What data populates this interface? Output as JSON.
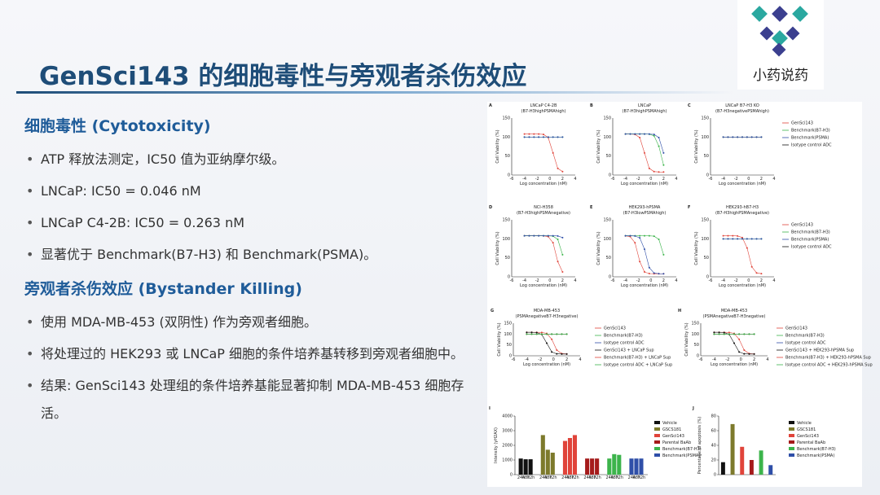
{
  "header": {
    "title": "GenSci143 的细胞毒性与旁观者杀伤效应",
    "logo_text": "小药说药"
  },
  "sections": [
    {
      "heading": "细胞毒性 (Cytotoxicity)",
      "bullets": [
        "ATP 释放法测定，IC50 值为亚纳摩尔级。",
        "LNCaP: IC50 = 0.046 nM",
        "LNCaP C4-2B: IC50 = 0.263 nM",
        "显著优于 Benchmark(B7-H3) 和 Benchmark(PSMA)。"
      ]
    },
    {
      "heading": "旁观者杀伤效应 (Bystander Killing)",
      "bullets": [
        "使用 MDA-MB-453 (双阴性) 作为旁观者细胞。",
        "将处理过的 HEK293 或 LNCaP 细胞的条件培养基转移到旁观者细胞中。",
        "结果: GenSci143 处理组的条件培养基能显著抑制 MDA-MB-453 细胞存活。"
      ]
    }
  ],
  "figure": {
    "y_label": "Cell Viability (%)",
    "x_label": "Log concentration (nM)",
    "yticks": [
      "0",
      "50",
      "100",
      "150"
    ],
    "xticks": [
      "-6",
      "-4",
      "-2",
      "0",
      "2",
      "4"
    ],
    "panels": [
      {
        "label": "A",
        "title": "LNCaP C4-2B",
        "subtitle": "(B7-H3highPSMAhigh)"
      },
      {
        "label": "B",
        "title": "LNCaP",
        "subtitle": "(B7-H3highPSMAhigh)"
      },
      {
        "label": "C",
        "title": "LNCaP B7-H3 KO",
        "subtitle": "(B7-H3negativePSMAhigh)"
      },
      {
        "label": "D",
        "title": "NCI-H358",
        "subtitle": "(B7-H3highPSMAnegative)"
      },
      {
        "label": "E",
        "title": "HEK293-hPSMA",
        "subtitle": "(B7-H3lowPSMAhigh)"
      },
      {
        "label": "F",
        "title": "HEK293-hB7-H3",
        "subtitle": "(B7-H3highPSMAnegative)"
      },
      {
        "label": "G",
        "title": "MDA-MB-453",
        "subtitle": "(PSMAnegativeB7-H3negative)"
      },
      {
        "label": "H",
        "title": "MDA-MB-453",
        "subtitle": "(PSMAnegativeB7-H3negative)"
      }
    ],
    "legend_abc": [
      "GenSci143",
      "Benchmark(B7-H3)",
      "Benchmark(PSMA)",
      "Isotype control ADC"
    ],
    "legend_g": [
      "GenSci143",
      "Benchmark(B7-H3)",
      "Isotype control ADC",
      "GenSci143 + LNCaP Sup",
      "Benchmark(B7-H3) + LNCaP Sup",
      "Isotype control ADC + LNCaP Sup"
    ],
    "legend_h": [
      "GenSci143",
      "Benchmark(B7-H3)",
      "Isotype control ADC",
      "GenSci143 + HEK293-hPSMA Sup",
      "Benchmark(B7-H3) + HEK293-hPSMA Sup",
      "Isotype control ADC + HEK293-hPSMA Sup"
    ],
    "bar_i": {
      "label": "I",
      "y_label": "Intensity (γH2AX)",
      "yticks": [
        0,
        1000,
        2000,
        3000,
        4000
      ],
      "ylim": [
        0,
        4000
      ],
      "times": [
        "24h",
        "48h",
        "72h"
      ],
      "series": [
        {
          "name": "Vehicle",
          "color": "#111111",
          "values": [
            1100,
            1050,
            1050
          ]
        },
        {
          "name": "GSCS181",
          "color": "#7d7a2c",
          "values": [
            2700,
            1700,
            1500
          ]
        },
        {
          "name": "GenSci143",
          "color": "#e0443a",
          "values": [
            2300,
            2500,
            2700
          ]
        },
        {
          "name": "Parental BaAb",
          "color": "#a51b1b",
          "values": [
            1100,
            1100,
            1100
          ]
        },
        {
          "name": "Benchmark(B7-H3)",
          "color": "#3cb44b",
          "values": [
            1100,
            1400,
            1350
          ]
        },
        {
          "name": "Benchmark(PSMA)",
          "color": "#2f4fa8",
          "values": [
            1100,
            1100,
            1100
          ]
        }
      ]
    },
    "bar_j": {
      "label": "J",
      "y_label": "Percentage of apoptosis (%)",
      "yticks": [
        0,
        20,
        40,
        60,
        80
      ],
      "ylim": [
        0,
        80
      ],
      "series": [
        {
          "name": "Vehicle",
          "color": "#111111",
          "values": [
            17
          ]
        },
        {
          "name": "GSCS181",
          "color": "#7d7a2c",
          "values": [
            69
          ]
        },
        {
          "name": "GenSci143",
          "color": "#e0443a",
          "values": [
            38
          ]
        },
        {
          "name": "Parental BaAb",
          "color": "#a51b1b",
          "values": [
            20
          ]
        },
        {
          "name": "Benchmark(B7-H3)",
          "color": "#3cb44b",
          "values": [
            33
          ]
        },
        {
          "name": "Benchmark(PSMA)",
          "color": "#2f4fa8",
          "values": [
            13
          ]
        }
      ]
    }
  }
}
